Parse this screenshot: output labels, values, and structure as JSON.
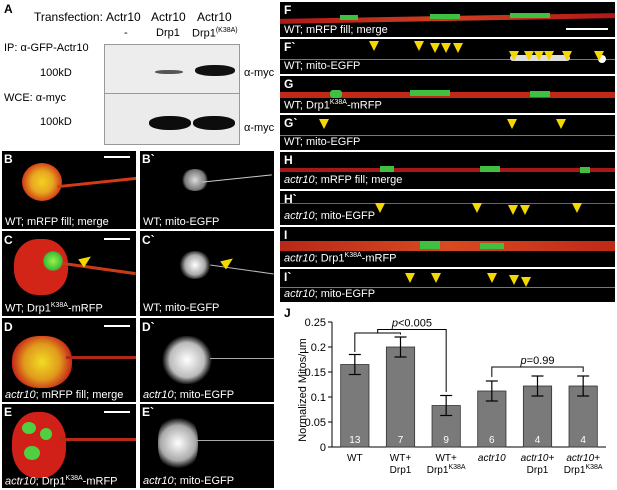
{
  "panels": {
    "A": "A",
    "B": "B",
    "B2": "B`",
    "C": "C",
    "C2": "C`",
    "D": "D",
    "D2": "D`",
    "E": "E",
    "E2": "E`",
    "F": "F",
    "F2": "F`",
    "G": "G",
    "G2": "G`",
    "H": "H",
    "H2": "H`",
    "I": "I",
    "I2": "I`",
    "J": "J"
  },
  "western": {
    "transfection_label": "Transfection:",
    "lanes": [
      {
        "top": "Actr10",
        "bottom": "-"
      },
      {
        "top": "Actr10",
        "bottom": "Drp1"
      },
      {
        "top": "Actr10",
        "bottom": "Drp1",
        "bottom_sup": "(K38A)"
      }
    ],
    "ip_label": "IP: α-GFP-Actr10",
    "wce_label": "WCE: α-myc",
    "mw_top": "100kD",
    "mw_bottom": "100kD",
    "ab_top": "α-myc",
    "ab_bottom": "α-myc"
  },
  "captions": {
    "B": "WT; mRFP fill; merge",
    "B2": "WT; mito-EGFP",
    "C_pre": "WT; Drp1",
    "C_sup": "K38A",
    "C_post": "-mRFP",
    "C2": "WT; mito-EGFP",
    "D_it": "actr10",
    "D_rest": "; mRFP fill; merge",
    "D2_it": "actr10",
    "D2_rest": "; mito-EGFP",
    "E_it": "actr10",
    "E_pre": "; Drp1",
    "E_sup": "K38A",
    "E_post": "-mRFP",
    "E2_it": "actr10",
    "E2_rest": "; mito-EGFP",
    "F": "WT; mRFP fill; merge",
    "F2": "WT; mito-EGFP",
    "G_pre": "WT; Drp1",
    "G_sup": "K38A",
    "G_post": "-mRFP",
    "G2": "WT; mito-EGFP",
    "H_it": "actr10",
    "H_rest": "; mRFP fill; merge",
    "H2_it": "actr10",
    "H2_rest": "; mito-EGFP",
    "I_it": "actr10",
    "I_pre": "; Drp1",
    "I_sup": "K38A",
    "I_post": "-mRFP",
    "I2_it": "actr10",
    "I2_rest": "; mito-EGFP"
  },
  "colors": {
    "arrow": "#f5d800",
    "bar_fill": "#7a7a7a",
    "mito_green": "#3fd23f",
    "fill_red": "#d42020"
  },
  "chart_data": {
    "type": "bar",
    "ylabel": "Normalized Mitos/µm",
    "ylim": [
      0,
      0.25
    ],
    "yticks": [
      0,
      0.05,
      0.1,
      0.15,
      0.2,
      0.25
    ],
    "categories": [
      "WT",
      "WT+ Drp1",
      "WT+ Drp1K38A",
      "actr10",
      "actr10+ Drp1",
      "actr10+ Drp1K38A"
    ],
    "category_lines": [
      {
        "l1": "WT",
        "l2": "",
        "l2sup": "",
        "italic": false
      },
      {
        "l1": "WT+",
        "l2": "Drp1",
        "l2sup": "",
        "italic": false
      },
      {
        "l1": "WT+",
        "l2": "Drp1",
        "l2sup": "K38A",
        "italic": false
      },
      {
        "l1": "actr10",
        "l2": "",
        "l2sup": "",
        "italic": true
      },
      {
        "l1": "actr10+",
        "l2": "Drp1",
        "l2sup": "",
        "italic": true
      },
      {
        "l1": "actr10+",
        "l2": "Drp1",
        "l2sup": "K38A",
        "italic": true
      }
    ],
    "values": [
      0.165,
      0.2,
      0.083,
      0.112,
      0.122,
      0.122
    ],
    "errors": [
      0.02,
      0.02,
      0.02,
      0.02,
      0.02,
      0.02
    ],
    "n": [
      "13",
      "7",
      "9",
      "6",
      "4",
      "4"
    ],
    "annotations": [
      {
        "text_pre": "p",
        "text_post": "<0.005"
      },
      {
        "text_pre": "p",
        "text_post": "=0.99"
      }
    ]
  }
}
